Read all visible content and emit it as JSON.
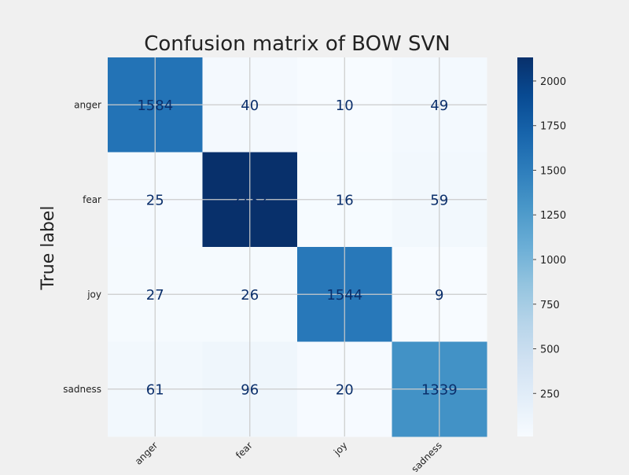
{
  "chart_data": {
    "type": "heatmap",
    "title": "Confusion matrix of BOW SVN",
    "ylabel": "True label",
    "xlabel": "",
    "x_categories": [
      "anger",
      "fear",
      "joy",
      "sadness"
    ],
    "y_categories": [
      "anger",
      "fear",
      "joy",
      "sadness"
    ],
    "matrix": [
      [
        1584,
        40,
        10,
        49
      ],
      [
        25,
        2132,
        16,
        59
      ],
      [
        27,
        26,
        1544,
        9
      ],
      [
        61,
        96,
        20,
        1339
      ]
    ],
    "colormap": "Blues",
    "value_range": [
      9,
      2132
    ],
    "colorbar_ticks": [
      250,
      500,
      750,
      1000,
      1250,
      1500,
      1750,
      2000
    ],
    "grid": true,
    "colors": {
      "background": "#f0f0f0",
      "grid": "#cbcbcb",
      "cell_text": "#0b2f6b",
      "text": "#222222"
    }
  }
}
